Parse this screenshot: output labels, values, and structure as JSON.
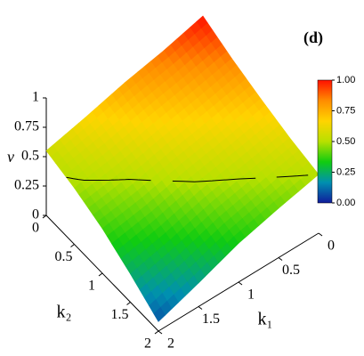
{
  "chart_data": {
    "type": "surface",
    "title": "(d)",
    "xlabel": "k₁",
    "ylabel": "k₂",
    "zlabel": "v",
    "x": [
      0,
      0.5,
      1,
      1.5,
      2
    ],
    "y": [
      0,
      0.5,
      1,
      1.5,
      2
    ],
    "z": [
      [
        1.0,
        0.85,
        0.72,
        0.6,
        0.5
      ],
      [
        0.88,
        0.75,
        0.63,
        0.52,
        0.42
      ],
      [
        0.78,
        0.66,
        0.55,
        0.44,
        0.33
      ],
      [
        0.66,
        0.56,
        0.45,
        0.33,
        0.2
      ],
      [
        0.55,
        0.48,
        0.38,
        0.24,
        0.08
      ]
    ],
    "xlim": [
      0,
      2
    ],
    "ylim": [
      0,
      2
    ],
    "zlim": [
      0,
      1
    ],
    "xticks": [
      0,
      0.5,
      1,
      1.5,
      2
    ],
    "yticks": [
      0,
      0.5,
      1,
      1.5,
      2
    ],
    "zticks": [
      0,
      0.25,
      0.5,
      0.75,
      1
    ],
    "contour_level": 0.5,
    "colormap": [
      "#101c9c",
      "#0090b0",
      "#10cc10",
      "#b8e000",
      "#ffd400",
      "#ff8c00",
      "#ff1000"
    ],
    "colorbar_ticks": [
      {
        "value": 0,
        "label": "0.00"
      },
      {
        "value": 0.25,
        "label": "0.25"
      },
      {
        "value": 0.5,
        "label": "0.50"
      },
      {
        "value": 0.75,
        "label": "0.75"
      },
      {
        "value": 1,
        "label": "1.00"
      }
    ]
  }
}
